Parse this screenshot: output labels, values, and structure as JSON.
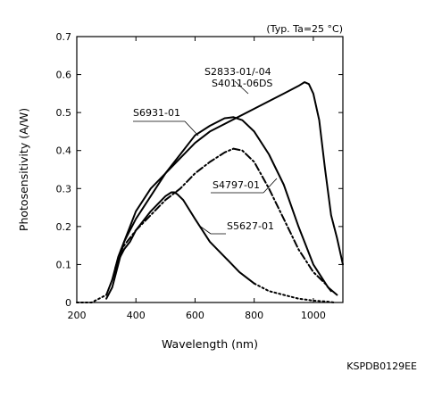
{
  "chart_data": {
    "type": "line",
    "title": "",
    "condition_note": "(Typ. Ta=25 °C)",
    "doc_code": "KSPDB0129EE",
    "xlabel": "Wavelength (nm)",
    "ylabel": "Photosensitivity (A/W)",
    "xlim": [
      200,
      1100
    ],
    "ylim": [
      0,
      0.7
    ],
    "x_ticks": [
      "200",
      "400",
      "600",
      "800",
      "1000"
    ],
    "y_ticks": [
      "0",
      "0.1",
      "0.2",
      "0.3",
      "0.4",
      "0.5",
      "0.6",
      "0.7"
    ],
    "grid": false,
    "series": [
      {
        "name": "S2833-01/-04",
        "name2": "S4011-06DS",
        "style": "solid",
        "x": [
          300,
          320,
          340,
          360,
          380,
          400,
          450,
          500,
          550,
          600,
          650,
          700,
          750,
          800,
          850,
          900,
          950,
          970,
          985,
          1000,
          1020,
          1040,
          1060,
          1080,
          1100
        ],
        "y": [
          0.01,
          0.04,
          0.1,
          0.16,
          0.2,
          0.24,
          0.3,
          0.34,
          0.38,
          0.42,
          0.45,
          0.47,
          0.49,
          0.51,
          0.53,
          0.55,
          0.57,
          0.58,
          0.575,
          0.55,
          0.48,
          0.35,
          0.23,
          0.17,
          0.1
        ]
      },
      {
        "name": "S6931-01",
        "style": "solid",
        "x": [
          320,
          340,
          360,
          380,
          400,
          450,
          500,
          550,
          600,
          650,
          700,
          730,
          760,
          800,
          850,
          900,
          950,
          1000,
          1050,
          1080
        ],
        "y": [
          0.06,
          0.12,
          0.16,
          0.19,
          0.22,
          0.28,
          0.34,
          0.39,
          0.44,
          0.465,
          0.485,
          0.488,
          0.48,
          0.45,
          0.39,
          0.31,
          0.2,
          0.1,
          0.04,
          0.02
        ]
      },
      {
        "name": "S4797-01",
        "style": "dashdot",
        "x": [
          330,
          350,
          400,
          450,
          500,
          550,
          600,
          650,
          700,
          730,
          760,
          800,
          850,
          900,
          950,
          1000,
          1040,
          1060
        ],
        "y": [
          0.09,
          0.14,
          0.19,
          0.23,
          0.27,
          0.3,
          0.34,
          0.37,
          0.395,
          0.405,
          0.4,
          0.37,
          0.3,
          0.22,
          0.14,
          0.08,
          0.05,
          0.03
        ]
      },
      {
        "name": "S5627-01",
        "style": "solid-then-dotted",
        "break_x": 800,
        "x": [
          200,
          250,
          300,
          320,
          340,
          360,
          380,
          400,
          450,
          500,
          520,
          530,
          540,
          560,
          600,
          650,
          700,
          750,
          800,
          850,
          900,
          950,
          1000,
          1050,
          1070
        ],
        "y": [
          0.0,
          0.0,
          0.02,
          0.06,
          0.11,
          0.14,
          0.16,
          0.19,
          0.24,
          0.28,
          0.29,
          0.29,
          0.285,
          0.27,
          0.22,
          0.16,
          0.12,
          0.08,
          0.05,
          0.03,
          0.02,
          0.01,
          0.005,
          0.002,
          0.0
        ]
      }
    ]
  }
}
